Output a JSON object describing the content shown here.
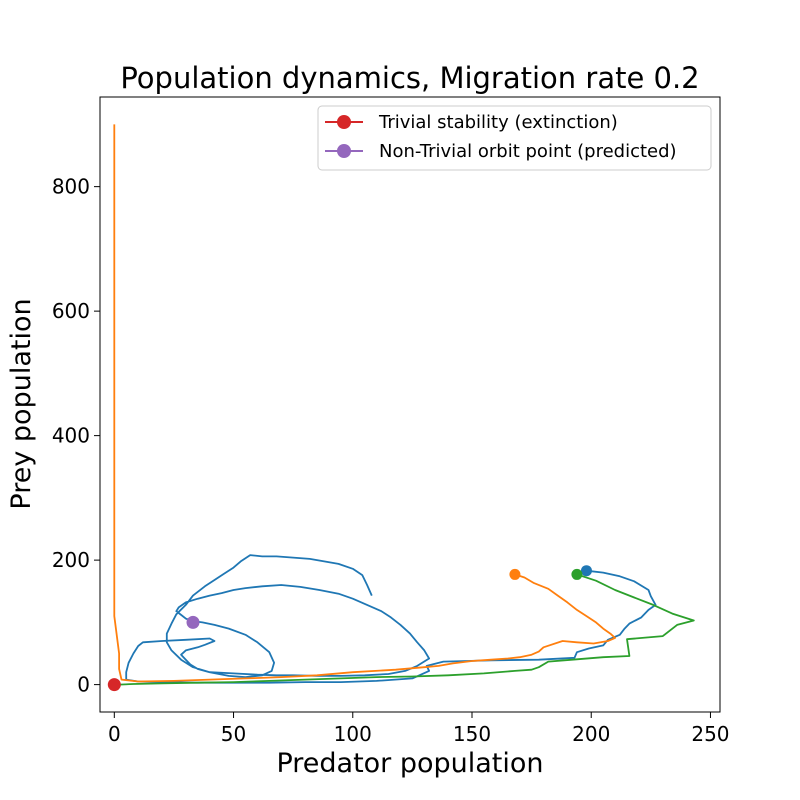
{
  "chart_data": {
    "type": "line",
    "title": "Population dynamics, Migration rate 0.2",
    "xlabel": "Predator population",
    "ylabel": "Prey population",
    "xlim": [
      -6,
      254
    ],
    "ylim": [
      -44,
      944
    ],
    "xticks": [
      0,
      50,
      100,
      150,
      200,
      250
    ],
    "yticks": [
      0,
      200,
      400,
      600,
      800
    ],
    "grid": false,
    "legend_position": "top-right",
    "legend": [
      {
        "label": "Trivial stability (extinction)",
        "color": "#d62728"
      },
      {
        "label": "Non-Trivial orbit point (predicted)",
        "color": "#9467bd"
      }
    ],
    "series": [
      {
        "color": "#1f77b4",
        "start": [
          198,
          183
        ],
        "points": [
          [
            198,
            183
          ],
          [
            205,
            180
          ],
          [
            212,
            174
          ],
          [
            218,
            166
          ],
          [
            224,
            152
          ],
          [
            225,
            142
          ],
          [
            227,
            128
          ],
          [
            224,
            120
          ],
          [
            221,
            108
          ],
          [
            216,
            98
          ],
          [
            214,
            90
          ],
          [
            212,
            80
          ],
          [
            207,
            72
          ],
          [
            205,
            63
          ],
          [
            199,
            58
          ],
          [
            194,
            52
          ],
          [
            193,
            43
          ],
          [
            178,
            40
          ],
          [
            158,
            39
          ],
          [
            148,
            38
          ],
          [
            138,
            37
          ],
          [
            131,
            30
          ],
          [
            132,
            22
          ],
          [
            125,
            10
          ],
          [
            110,
            6
          ],
          [
            95,
            4
          ],
          [
            80,
            4
          ],
          [
            65,
            3
          ],
          [
            50,
            3
          ],
          [
            35,
            3
          ],
          [
            20,
            4
          ],
          [
            10,
            5
          ],
          [
            5,
            8
          ],
          [
            5,
            20
          ],
          [
            6,
            35
          ],
          [
            8,
            50
          ],
          [
            10,
            62
          ],
          [
            12,
            68
          ],
          [
            20,
            70
          ],
          [
            30,
            72
          ],
          [
            40,
            74
          ],
          [
            42,
            70
          ],
          [
            38,
            64
          ],
          [
            35,
            60
          ],
          [
            30,
            55
          ],
          [
            28,
            48
          ],
          [
            30,
            40
          ],
          [
            32,
            32
          ],
          [
            35,
            25
          ],
          [
            40,
            20
          ],
          [
            50,
            18
          ],
          [
            60,
            16
          ],
          [
            68,
            15
          ],
          [
            75,
            15
          ],
          [
            85,
            14
          ],
          [
            95,
            14
          ],
          [
            105,
            15
          ],
          [
            115,
            17
          ],
          [
            122,
            22
          ],
          [
            127,
            30
          ],
          [
            132,
            42
          ],
          [
            130,
            55
          ],
          [
            127,
            68
          ],
          [
            124,
            82
          ],
          [
            120,
            96
          ],
          [
            116,
            108
          ],
          [
            112,
            118
          ],
          [
            106,
            128
          ],
          [
            100,
            138
          ],
          [
            94,
            146
          ],
          [
            86,
            152
          ],
          [
            78,
            157
          ],
          [
            70,
            160
          ],
          [
            62,
            158
          ],
          [
            55,
            155
          ],
          [
            50,
            152
          ],
          [
            45,
            147
          ],
          [
            40,
            143
          ],
          [
            35,
            138
          ],
          [
            30,
            132
          ],
          [
            27,
            124
          ],
          [
            26,
            118
          ],
          [
            28,
            112
          ],
          [
            30,
            106
          ],
          [
            33,
            102
          ],
          [
            37,
            100
          ],
          [
            42,
            96
          ],
          [
            48,
            90
          ],
          [
            55,
            80
          ],
          [
            60,
            68
          ],
          [
            65,
            52
          ],
          [
            67,
            35
          ],
          [
            66,
            22
          ],
          [
            62,
            15
          ],
          [
            55,
            12
          ],
          [
            48,
            14
          ],
          [
            40,
            20
          ],
          [
            33,
            28
          ],
          [
            28,
            40
          ],
          [
            24,
            55
          ],
          [
            22,
            68
          ],
          [
            22,
            82
          ],
          [
            24,
            98
          ],
          [
            26,
            113
          ],
          [
            30,
            128
          ],
          [
            33,
            143
          ],
          [
            38,
            158
          ],
          [
            42,
            168
          ],
          [
            46,
            178
          ],
          [
            50,
            188
          ],
          [
            53,
            198
          ],
          [
            57,
            208
          ],
          [
            62,
            206
          ],
          [
            68,
            206
          ],
          [
            75,
            204
          ],
          [
            82,
            202
          ],
          [
            88,
            198
          ],
          [
            94,
            194
          ],
          [
            100,
            186
          ],
          [
            104,
            176
          ],
          [
            106,
            160
          ],
          [
            108,
            143
          ]
        ]
      },
      {
        "color": "#ff7f0e",
        "start": [
          168,
          177
        ],
        "points": [
          [
            168,
            177
          ],
          [
            172,
            172
          ],
          [
            176,
            163
          ],
          [
            182,
            154
          ],
          [
            186,
            143
          ],
          [
            190,
            132
          ],
          [
            194,
            120
          ],
          [
            198,
            110
          ],
          [
            202,
            100
          ],
          [
            205,
            90
          ],
          [
            208,
            82
          ],
          [
            210,
            75
          ],
          [
            207,
            70
          ],
          [
            201,
            66
          ],
          [
            194,
            68
          ],
          [
            188,
            70
          ],
          [
            180,
            60
          ],
          [
            178,
            53
          ],
          [
            175,
            48
          ],
          [
            170,
            44
          ],
          [
            165,
            42
          ],
          [
            158,
            40
          ],
          [
            150,
            38
          ],
          [
            142,
            34
          ],
          [
            136,
            30
          ],
          [
            130,
            28
          ],
          [
            118,
            24
          ],
          [
            100,
            20
          ],
          [
            85,
            15
          ],
          [
            70,
            12
          ],
          [
            55,
            10
          ],
          [
            40,
            8
          ],
          [
            25,
            6
          ],
          [
            10,
            5
          ],
          [
            3,
            8
          ],
          [
            2,
            25
          ],
          [
            2,
            50
          ],
          [
            1,
            80
          ],
          [
            0,
            110
          ],
          [
            0,
            200
          ],
          [
            0,
            400
          ],
          [
            0,
            600
          ],
          [
            0,
            800
          ],
          [
            0,
            900
          ]
        ]
      },
      {
        "color": "#2ca02c",
        "start": [
          194,
          177
        ],
        "points": [
          [
            194,
            177
          ],
          [
            202,
            167
          ],
          [
            210,
            152
          ],
          [
            218,
            140
          ],
          [
            226,
            128
          ],
          [
            234,
            114
          ],
          [
            243,
            103
          ],
          [
            236,
            96
          ],
          [
            230,
            78
          ],
          [
            215,
            73
          ],
          [
            216,
            46
          ],
          [
            205,
            44
          ],
          [
            192,
            40
          ],
          [
            182,
            37
          ],
          [
            178,
            28
          ],
          [
            175,
            24
          ],
          [
            168,
            22
          ],
          [
            155,
            18
          ],
          [
            140,
            15
          ],
          [
            125,
            13
          ],
          [
            110,
            12
          ],
          [
            95,
            10
          ],
          [
            80,
            8
          ],
          [
            65,
            6
          ],
          [
            50,
            4
          ],
          [
            35,
            3
          ],
          [
            20,
            2
          ],
          [
            8,
            1
          ],
          [
            2,
            0
          ],
          [
            0,
            0
          ]
        ]
      }
    ],
    "markers": [
      {
        "x": 0,
        "y": 0,
        "color": "#d62728"
      },
      {
        "x": 33,
        "y": 100,
        "color": "#9467bd"
      }
    ]
  }
}
